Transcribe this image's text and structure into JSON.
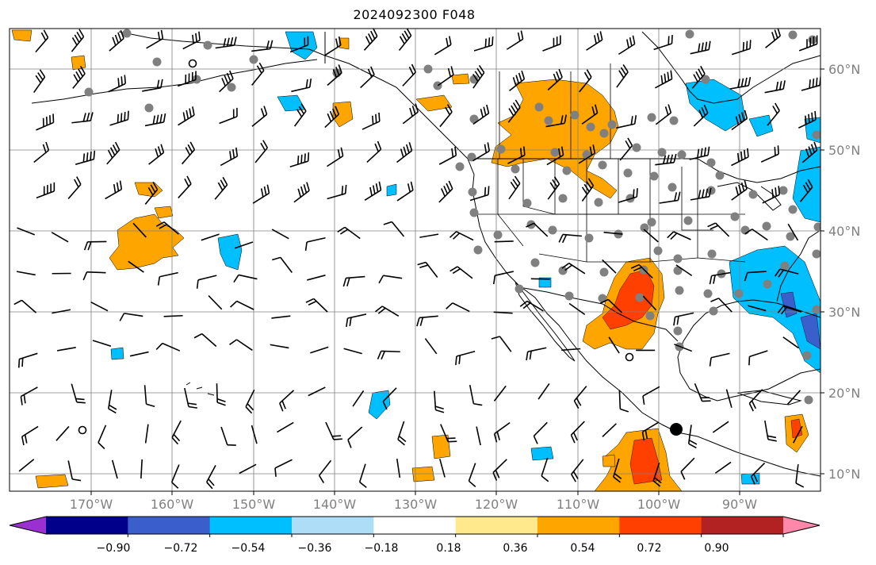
{
  "title": "2024092300 F048",
  "lat_labels": [
    "60°N",
    "50°N",
    "40°N",
    "30°N",
    "20°N",
    "10°N"
  ],
  "lon_labels": [
    "170°W",
    "160°W",
    "150°W",
    "140°W",
    "130°W",
    "120°W",
    "110°W",
    "100°W",
    "90°W"
  ],
  "colorbar": {
    "tick_labels": [
      "−0.90",
      "−0.72",
      "−0.54",
      "−0.36",
      "−0.18",
      "0.18",
      "0.36",
      "0.54",
      "0.72",
      "0.90"
    ],
    "bins": [
      {
        "color": "#9b30d0"
      },
      {
        "color": "#00008b"
      },
      {
        "color": "#3a5fcd"
      },
      {
        "color": "#00bfff"
      },
      {
        "color": "#aeddf7"
      },
      {
        "color": "#ffffff"
      },
      {
        "color": "#ffe98c"
      },
      {
        "color": "#ffa500"
      },
      {
        "color": "#ff4000"
      },
      {
        "color": "#b22222"
      },
      {
        "color": "#ff88aa"
      }
    ]
  },
  "legend_colors": {
    "orange": "#ffa500",
    "red": "#ff4000",
    "cyan": "#00bfff",
    "light_blue": "#aeddf7",
    "gray_dots": "#808080"
  },
  "map_extent": {
    "lon_min": -180,
    "lon_max": -80,
    "lat_min": 8,
    "lat_max": 65
  }
}
